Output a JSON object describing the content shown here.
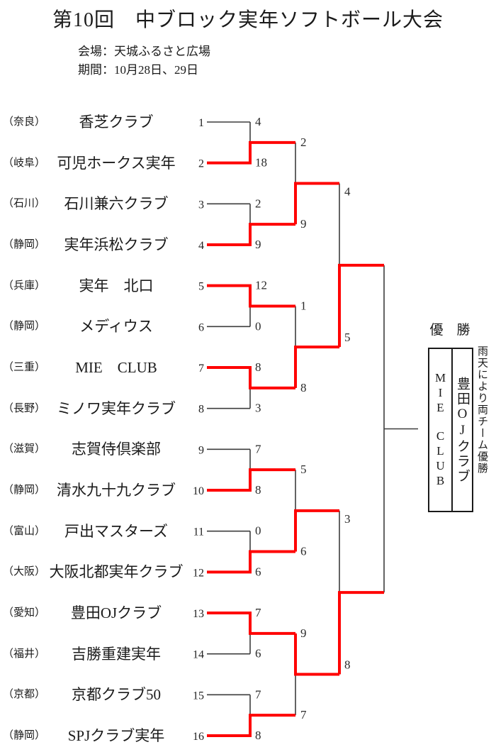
{
  "header": {
    "title": "第10回　中ブロック実年ソフトボール大会",
    "venue": "会場：天城ふるさと広場",
    "period": "期間：10月28日、29日"
  },
  "colors": {
    "winner_path": "#ff0000",
    "line": "#3d3d3d",
    "text": "#1a1a1a"
  },
  "teams": [
    {
      "prefecture": "（奈良）",
      "name": "香芝クラブ",
      "seed": "1"
    },
    {
      "prefecture": "（岐阜）",
      "name": "可児ホークス実年",
      "seed": "2"
    },
    {
      "prefecture": "（石川）",
      "name": "石川兼六クラブ",
      "seed": "3"
    },
    {
      "prefecture": "（静岡）",
      "name": "実年浜松クラブ",
      "seed": "4"
    },
    {
      "prefecture": "（兵庫）",
      "name": "実年　北口",
      "seed": "5"
    },
    {
      "prefecture": "（静岡）",
      "name": "メディウス",
      "seed": "6"
    },
    {
      "prefecture": "（三重）",
      "name": "MIE　CLUB",
      "seed": "7"
    },
    {
      "prefecture": "（長野）",
      "name": "ミノワ実年クラブ",
      "seed": "8"
    },
    {
      "prefecture": "（滋賀）",
      "name": "志賀侍倶楽部",
      "seed": "9"
    },
    {
      "prefecture": "（静岡）",
      "name": "清水九十九クラブ",
      "seed": "10"
    },
    {
      "prefecture": "（富山）",
      "name": "戸出マスターズ",
      "seed": "11"
    },
    {
      "prefecture": "（大阪）",
      "name": "大阪北都実年クラブ",
      "seed": "12"
    },
    {
      "prefecture": "（愛知）",
      "name": "豊田OJクラブ",
      "seed": "13"
    },
    {
      "prefecture": "（福井）",
      "name": "吉勝重建実年",
      "seed": "14"
    },
    {
      "prefecture": "（京都）",
      "name": "京都クラブ50",
      "seed": "15"
    },
    {
      "prefecture": "（静岡）",
      "name": "SPJクラブ実年",
      "seed": "16"
    }
  ],
  "bracket": {
    "round1": [
      {
        "top_score": "4",
        "bottom_score": "18",
        "winner": "bottom"
      },
      {
        "top_score": "2",
        "bottom_score": "9",
        "winner": "bottom"
      },
      {
        "top_score": "12",
        "bottom_score": "0",
        "winner": "top"
      },
      {
        "top_score": "8",
        "bottom_score": "3",
        "winner": "top"
      },
      {
        "top_score": "7",
        "bottom_score": "8",
        "winner": "bottom"
      },
      {
        "top_score": "0",
        "bottom_score": "6",
        "winner": "bottom"
      },
      {
        "top_score": "7",
        "bottom_score": "6",
        "winner": "top"
      },
      {
        "top_score": "7",
        "bottom_score": "8",
        "winner": "bottom"
      }
    ],
    "round2": [
      {
        "top_score": "2",
        "bottom_score": "9",
        "winner": "bottom"
      },
      {
        "top_score": "1",
        "bottom_score": "8",
        "winner": "bottom"
      },
      {
        "top_score": "5",
        "bottom_score": "6",
        "winner": "bottom"
      },
      {
        "top_score": "9",
        "bottom_score": "7",
        "winner": "top"
      }
    ],
    "semifinals": [
      {
        "top_score": "4",
        "bottom_score": "5",
        "winner": "bottom"
      },
      {
        "top_score": "3",
        "bottom_score": "8",
        "winner": "bottom"
      }
    ],
    "final": {
      "played": false,
      "winner": "none"
    }
  },
  "champion": {
    "label": "優　勝",
    "winners": [
      "MIE　CLUB",
      "豊田OJクラブ"
    ],
    "note": "雨天により両チーム優勝"
  }
}
